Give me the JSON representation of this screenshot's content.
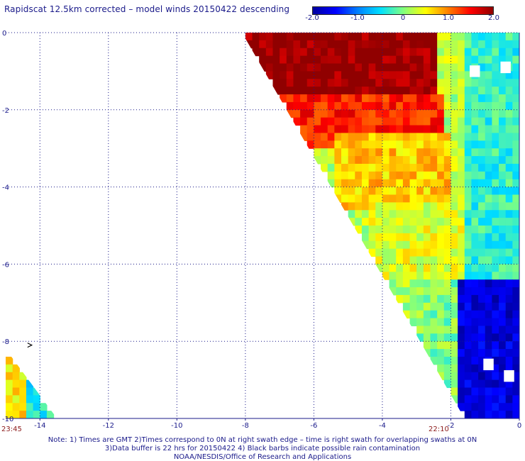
{
  "title": "Rapidscat 12.5km corrected – model winds 20150422 descending",
  "colorbar": {
    "ticks": [
      "-2.0",
      "-1.0",
      "0",
      "1.0",
      "2.0"
    ],
    "min": -2.0,
    "max": 2.0,
    "stops": [
      "#0000a0",
      "#0000ff",
      "#0080ff",
      "#00e0ff",
      "#80ff80",
      "#ffff00",
      "#ff8000",
      "#ff0000",
      "#900000"
    ]
  },
  "axes": {
    "x_ticks": [
      "-14",
      "-12",
      "-10",
      "-8",
      "-6",
      "-4",
      "-2",
      "0"
    ],
    "y_ticks": [
      "0",
      "-2",
      "-4",
      "-6",
      "-8",
      "-10"
    ],
    "xlim": [
      -15,
      0
    ],
    "ylim": [
      -10,
      0
    ]
  },
  "times": {
    "left": "23:45",
    "right": "22:10"
  },
  "notes": [
    "Note: 1) Times are GMT 2)Times correspond to 0N at right swath edge – time is right swath for overlapping swaths at 0N",
    "3)Data buffer is 22 hrs for 20150422 4) Black barbs indicate possible rain contamination",
    "NOAA/NESDIS/Office of Research and Applications"
  ],
  "chart_data": {
    "type": "heatmap",
    "title": "Rapidscat 12.5km corrected – model winds 20150422 descending",
    "xlim": [
      -15,
      0
    ],
    "ylim": [
      -10,
      0
    ],
    "value_range": [
      -2.0,
      2.0
    ],
    "swaths": [
      {
        "region_lon_lat": [
          [
            -8.1,
            0
          ],
          [
            0,
            0
          ],
          [
            0,
            -10
          ],
          [
            -1.6,
            -10
          ],
          [
            -8.1,
            0
          ]
        ],
        "regions": [
          {
            "lat": [
              -3,
              0
            ],
            "lon": [
              -8.1,
              -2.4
            ],
            "value": 2.0
          },
          {
            "lat": [
              -3,
              -1.6
            ],
            "lon": [
              -7,
              -2.2
            ],
            "value": 1.4
          },
          {
            "lat": [
              -4.6,
              -2.6
            ],
            "lon": [
              -5.5,
              -2
            ],
            "value": 0.7
          },
          {
            "lat": [
              -6.5,
              -4.5
            ],
            "lon": [
              -4.5,
              -1.2
            ],
            "value": 0.4
          },
          {
            "lat": [
              -10,
              -6.5
            ],
            "lon": [
              -3,
              -1.6
            ],
            "value": 0.0
          },
          {
            "lat": [
              -6.5,
              0
            ],
            "lon": [
              -1.6,
              0
            ],
            "value": -0.3
          },
          {
            "lat": [
              -10,
              -6.5
            ],
            "lon": [
              -1.8,
              0
            ],
            "value": -1.7
          }
        ]
      },
      {
        "region_lon_lat": [
          [
            -15,
            -8.2
          ],
          [
            -15,
            -10
          ],
          [
            -13.5,
            -10
          ],
          [
            -15,
            -8.2
          ]
        ],
        "regions": [
          {
            "lat": [
              -10,
              -8.2
            ],
            "lon": [
              -15,
              -14.5
            ],
            "value": 0.6
          },
          {
            "lat": [
              -10,
              -8.8
            ],
            "lon": [
              -14.5,
              -13.5
            ],
            "value": -0.4
          }
        ]
      }
    ],
    "gaps": [
      {
        "lon": -1.3,
        "lat": -1.0
      },
      {
        "lon": -0.4,
        "lat": -0.9
      },
      {
        "lon": -0.9,
        "lat": -8.6
      },
      {
        "lon": -0.3,
        "lat": -8.9
      }
    ],
    "rain_barbs": [
      {
        "lon": -14.3,
        "lat": -8.1
      }
    ]
  }
}
